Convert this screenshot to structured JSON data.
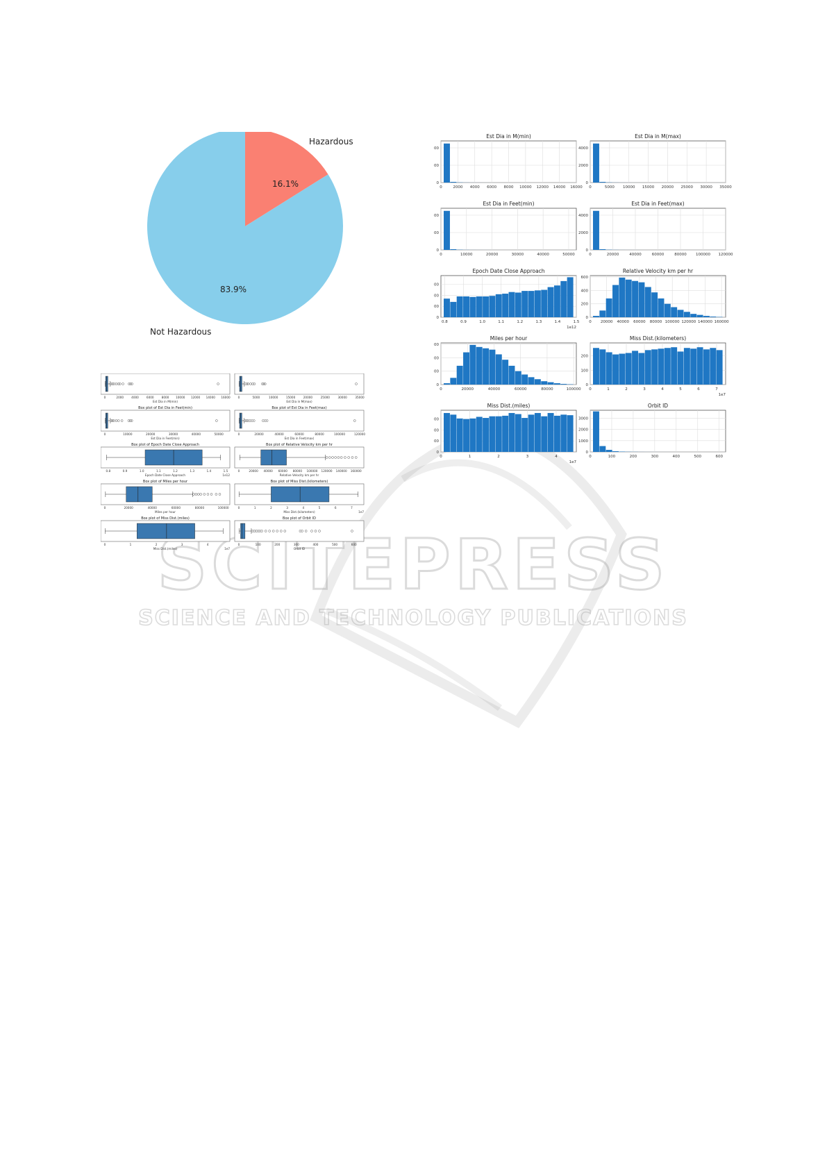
{
  "pie": {
    "labels": [
      "Hazardous",
      "Not Hazardous"
    ],
    "values": [
      16.1,
      83.9
    ],
    "percent_labels": [
      "16.1%",
      "83.9%"
    ],
    "colors": [
      "#fa8072",
      "#87ceeb"
    ]
  },
  "watermark": {
    "line1": "SCITEPRESS",
    "line2": "SCIENCE AND TECHNOLOGY PUBLICATIONS"
  },
  "chart_data": [
    {
      "type": "pie",
      "labels": [
        "Hazardous",
        "Not Hazardous"
      ],
      "values": [
        16.1,
        83.9
      ]
    },
    {
      "type": "bar",
      "subtype": "histogram",
      "group": "histograms",
      "panels": [
        {
          "title": "Est Dia in M(min)",
          "xticks": [
            "0",
            "2000",
            "4000",
            "6000",
            "8000",
            "10000",
            "12000",
            "14000",
            "16000"
          ],
          "xlim": [
            0,
            16000
          ],
          "yticks": [
            "0",
            "2000",
            "4000"
          ],
          "ylim": [
            0,
            4800
          ],
          "counts": [
            4500,
            80,
            25,
            10,
            5,
            3,
            2,
            1,
            0,
            0,
            0,
            0,
            0,
            0,
            0,
            0,
            0,
            0,
            0,
            1
          ],
          "exp": ""
        },
        {
          "title": "Est Dia in M(max)",
          "xticks": [
            "0",
            "5000",
            "10000",
            "15000",
            "20000",
            "25000",
            "30000",
            "35000"
          ],
          "xlim": [
            0,
            35000
          ],
          "yticks": [
            "0",
            "2000",
            "4000"
          ],
          "ylim": [
            0,
            4800
          ],
          "counts": [
            4500,
            80,
            25,
            10,
            5,
            3,
            2,
            1,
            0,
            0,
            0,
            0,
            0,
            0,
            0,
            0,
            0,
            0,
            0,
            1
          ],
          "exp": ""
        },
        {
          "title": "Est Dia in Feet(min)",
          "xticks": [
            "0",
            "10000",
            "20000",
            "30000",
            "40000",
            "50000"
          ],
          "xlim": [
            0,
            53000
          ],
          "yticks": [
            "0",
            "2000",
            "4000"
          ],
          "ylim": [
            0,
            4800
          ],
          "counts": [
            4500,
            80,
            25,
            10,
            5,
            3,
            2,
            1,
            0,
            0,
            0,
            0,
            0,
            0,
            0,
            0,
            0,
            0,
            0,
            1
          ],
          "exp": ""
        },
        {
          "title": "Est Dia in Feet(max)",
          "xticks": [
            "0",
            "20000",
            "40000",
            "60000",
            "80000",
            "100000",
            "120000"
          ],
          "xlim": [
            0,
            120000
          ],
          "yticks": [
            "0",
            "2000",
            "4000"
          ],
          "ylim": [
            0,
            4800
          ],
          "counts": [
            4500,
            80,
            25,
            10,
            5,
            3,
            2,
            1,
            0,
            0,
            0,
            0,
            0,
            0,
            0,
            0,
            0,
            0,
            0,
            1
          ],
          "exp": ""
        },
        {
          "title": "Epoch Date Close Approach",
          "xticks": [
            "0.8",
            "0.9",
            "1.0",
            "1.1",
            "1.2",
            "1.3",
            "1.4",
            "1.5"
          ],
          "xlim": [
            0.78,
            1.5
          ],
          "yticks": [
            "0",
            "100",
            "200",
            "300"
          ],
          "ylim": [
            0,
            380
          ],
          "counts": [
            170,
            140,
            190,
            190,
            185,
            190,
            190,
            195,
            210,
            215,
            230,
            225,
            240,
            240,
            245,
            250,
            275,
            290,
            330,
            365
          ],
          "exp": "1e12"
        },
        {
          "title": "Relative Velocity km per hr",
          "xticks": [
            "0",
            "20000",
            "40000",
            "60000",
            "80000",
            "100000",
            "120000",
            "140000",
            "160000"
          ],
          "xlim": [
            0,
            165000
          ],
          "yticks": [
            "0",
            "200",
            "400",
            "600"
          ],
          "ylim": [
            0,
            620
          ],
          "counts": [
            20,
            100,
            280,
            480,
            590,
            560,
            540,
            520,
            450,
            370,
            280,
            200,
            150,
            110,
            80,
            50,
            35,
            20,
            10,
            5
          ],
          "exp": ""
        },
        {
          "title": "Miles per hour",
          "xticks": [
            "0",
            "20000",
            "40000",
            "60000",
            "80000",
            "100000"
          ],
          "xlim": [
            0,
            102000
          ],
          "yticks": [
            "0",
            "200",
            "400",
            "600"
          ],
          "ylim": [
            0,
            620
          ],
          "counts": [
            20,
            100,
            280,
            480,
            590,
            560,
            540,
            520,
            450,
            370,
            280,
            200,
            150,
            110,
            80,
            50,
            35,
            20,
            10,
            5
          ],
          "exp": ""
        },
        {
          "title": "Miss Dist.(kilometers)",
          "xticks": [
            "0",
            "1",
            "2",
            "3",
            "4",
            "5",
            "6",
            "7"
          ],
          "xlim": [
            0,
            7.5
          ],
          "yticks": [
            "0",
            "100",
            "200"
          ],
          "ylim": [
            0,
            290
          ],
          "counts": [
            255,
            245,
            225,
            210,
            215,
            220,
            235,
            220,
            240,
            245,
            250,
            255,
            260,
            230,
            255,
            250,
            260,
            245,
            255,
            240
          ],
          "exp": "1e7"
        },
        {
          "title": "Miss Dist.(miles)",
          "xticks": [
            "0",
            "1",
            "2",
            "3",
            "4"
          ],
          "xlim": [
            0,
            4.7
          ],
          "yticks": [
            "0",
            "100",
            "200",
            "300"
          ],
          "ylim": [
            0,
            380
          ],
          "counts": [
            355,
            340,
            305,
            300,
            305,
            320,
            310,
            325,
            325,
            330,
            355,
            345,
            310,
            340,
            355,
            325,
            355,
            330,
            340,
            335
          ],
          "exp": "1e7"
        },
        {
          "title": "Orbit ID",
          "xticks": [
            "0",
            "100",
            "200",
            "300",
            "400",
            "500",
            "600"
          ],
          "xlim": [
            0,
            630
          ],
          "yticks": [
            "0",
            "1000",
            "2000",
            "3000"
          ],
          "ylim": [
            0,
            3700
          ],
          "counts": [
            3600,
            520,
            180,
            60,
            30,
            15,
            10,
            5,
            3,
            2,
            1,
            1,
            0,
            0,
            0,
            0,
            0,
            0,
            0,
            0
          ],
          "exp": ""
        }
      ]
    },
    {
      "type": "box",
      "group": "boxplots",
      "panels": [
        {
          "title": "Box plot of Est Dia in M(min)",
          "xlabel": "Est Dia in M(min)",
          "xticks": [
            "0",
            "2000",
            "4000",
            "6000",
            "8000",
            "10000",
            "12000",
            "14000",
            "16000"
          ],
          "xlim": [
            0,
            16000
          ],
          "box": [
            30,
            100,
            220,
            400,
            700
          ],
          "outliers": [
            800,
            1000,
            1200,
            1500,
            1800,
            2000,
            2400,
            3200,
            3400,
            3600,
            15000
          ],
          "exp": ""
        },
        {
          "title": "Box plot of Est Dia in M(max)",
          "xlabel": "Est Dia in M(max)",
          "xticks": [
            "0",
            "5000",
            "10000",
            "15000",
            "20000",
            "25000",
            "30000",
            "35000"
          ],
          "xlim": [
            0,
            35000
          ],
          "box": [
            60,
            200,
            500,
            900,
            1500
          ],
          "outliers": [
            1800,
            2300,
            2700,
            3400,
            4000,
            4500,
            6800,
            7200,
            7600,
            34000
          ],
          "exp": ""
        },
        {
          "title": "Box plot of Est Dia in Feet(min)",
          "xlabel": "Est Dia in Feet(min)",
          "xticks": [
            "0",
            "10000",
            "20000",
            "30000",
            "40000",
            "50000"
          ],
          "xlim": [
            0,
            53000
          ],
          "box": [
            100,
            350,
            700,
            1300,
            2400
          ],
          "outliers": [
            2800,
            3300,
            3900,
            5000,
            6000,
            7500,
            10500,
            11200,
            11800,
            49000
          ],
          "exp": ""
        },
        {
          "title": "Box plot of Est Dia in Feet(max)",
          "xlabel": "Est Dia in Feet(max)",
          "xticks": [
            "0",
            "20000",
            "40000",
            "60000",
            "80000",
            "100000",
            "120000"
          ],
          "xlim": [
            0,
            120000
          ],
          "box": [
            200,
            700,
            1600,
            3000,
            5200
          ],
          "outliers": [
            6000,
            7500,
            9000,
            11000,
            13000,
            15000,
            24000,
            26000,
            28000,
            115000
          ],
          "exp": ""
        },
        {
          "title": "Box plot of Epoch Date Close Approach",
          "xlabel": "Epoch Date Close Approach",
          "xticks": [
            "0.8",
            "0.9",
            "1.0",
            "1.1",
            "1.2",
            "1.3",
            "1.4",
            "1.5"
          ],
          "xlim": [
            0.78,
            1.5
          ],
          "box": [
            0.79,
            1.02,
            1.19,
            1.36,
            1.47
          ],
          "outliers": [],
          "exp": "1e12"
        },
        {
          "title": "Box plot of Relative Velocity km per hr",
          "xlabel": "Relative Velocity km per hr",
          "xticks": [
            "0",
            "20000",
            "40000",
            "60000",
            "80000",
            "100000",
            "120000",
            "140000",
            "160000"
          ],
          "xlim": [
            0,
            165000
          ],
          "box": [
            1200,
            30000,
            45000,
            65000,
            118000
          ],
          "outliers": [
            120000,
            124000,
            128000,
            132000,
            136000,
            140000,
            145000,
            150000,
            155000,
            160000
          ],
          "exp": ""
        },
        {
          "title": "Box plot of Miles per hour",
          "xlabel": "Miles per hour",
          "xticks": [
            "0",
            "20000",
            "40000",
            "60000",
            "80000",
            "100000"
          ],
          "xlim": [
            0,
            102000
          ],
          "box": [
            500,
            18000,
            28000,
            40000,
            74000
          ],
          "outliers": [
            75000,
            77000,
            79000,
            81000,
            84000,
            87000,
            90000,
            94000,
            97000
          ],
          "exp": ""
        },
        {
          "title": "Box plot of Miss Dist.(kilometers)",
          "xlabel": "Miss Dist.(kilometers)",
          "xticks": [
            "0",
            "1",
            "2",
            "3",
            "4",
            "5",
            "6",
            "7"
          ],
          "xlim": [
            0,
            7.5
          ],
          "box": [
            0.01,
            2.0,
            3.8,
            5.6,
            7.4
          ],
          "outliers": [],
          "exp": "1e7"
        },
        {
          "title": "Box plot of Miss Dist.(miles)",
          "xlabel": "Miss Dist.(miles)",
          "xticks": [
            "0",
            "1",
            "2",
            "3",
            "4"
          ],
          "xlim": [
            0,
            4.7
          ],
          "box": [
            0.01,
            1.25,
            2.4,
            3.5,
            4.6
          ],
          "outliers": [],
          "exp": "1e7"
        },
        {
          "title": "Box plot of Orbit ID",
          "xlabel": "Orbit ID",
          "xticks": [
            "0",
            "100",
            "200",
            "300",
            "400",
            "500",
            "600"
          ],
          "xlim": [
            0,
            630
          ],
          "box": [
            1,
            9,
            17,
            32,
            65
          ],
          "outliers": [
            70,
            80,
            90,
            100,
            110,
            120,
            140,
            160,
            180,
            200,
            220,
            240,
            320,
            330,
            350,
            380,
            400,
            420,
            590
          ],
          "exp": ""
        }
      ]
    }
  ]
}
